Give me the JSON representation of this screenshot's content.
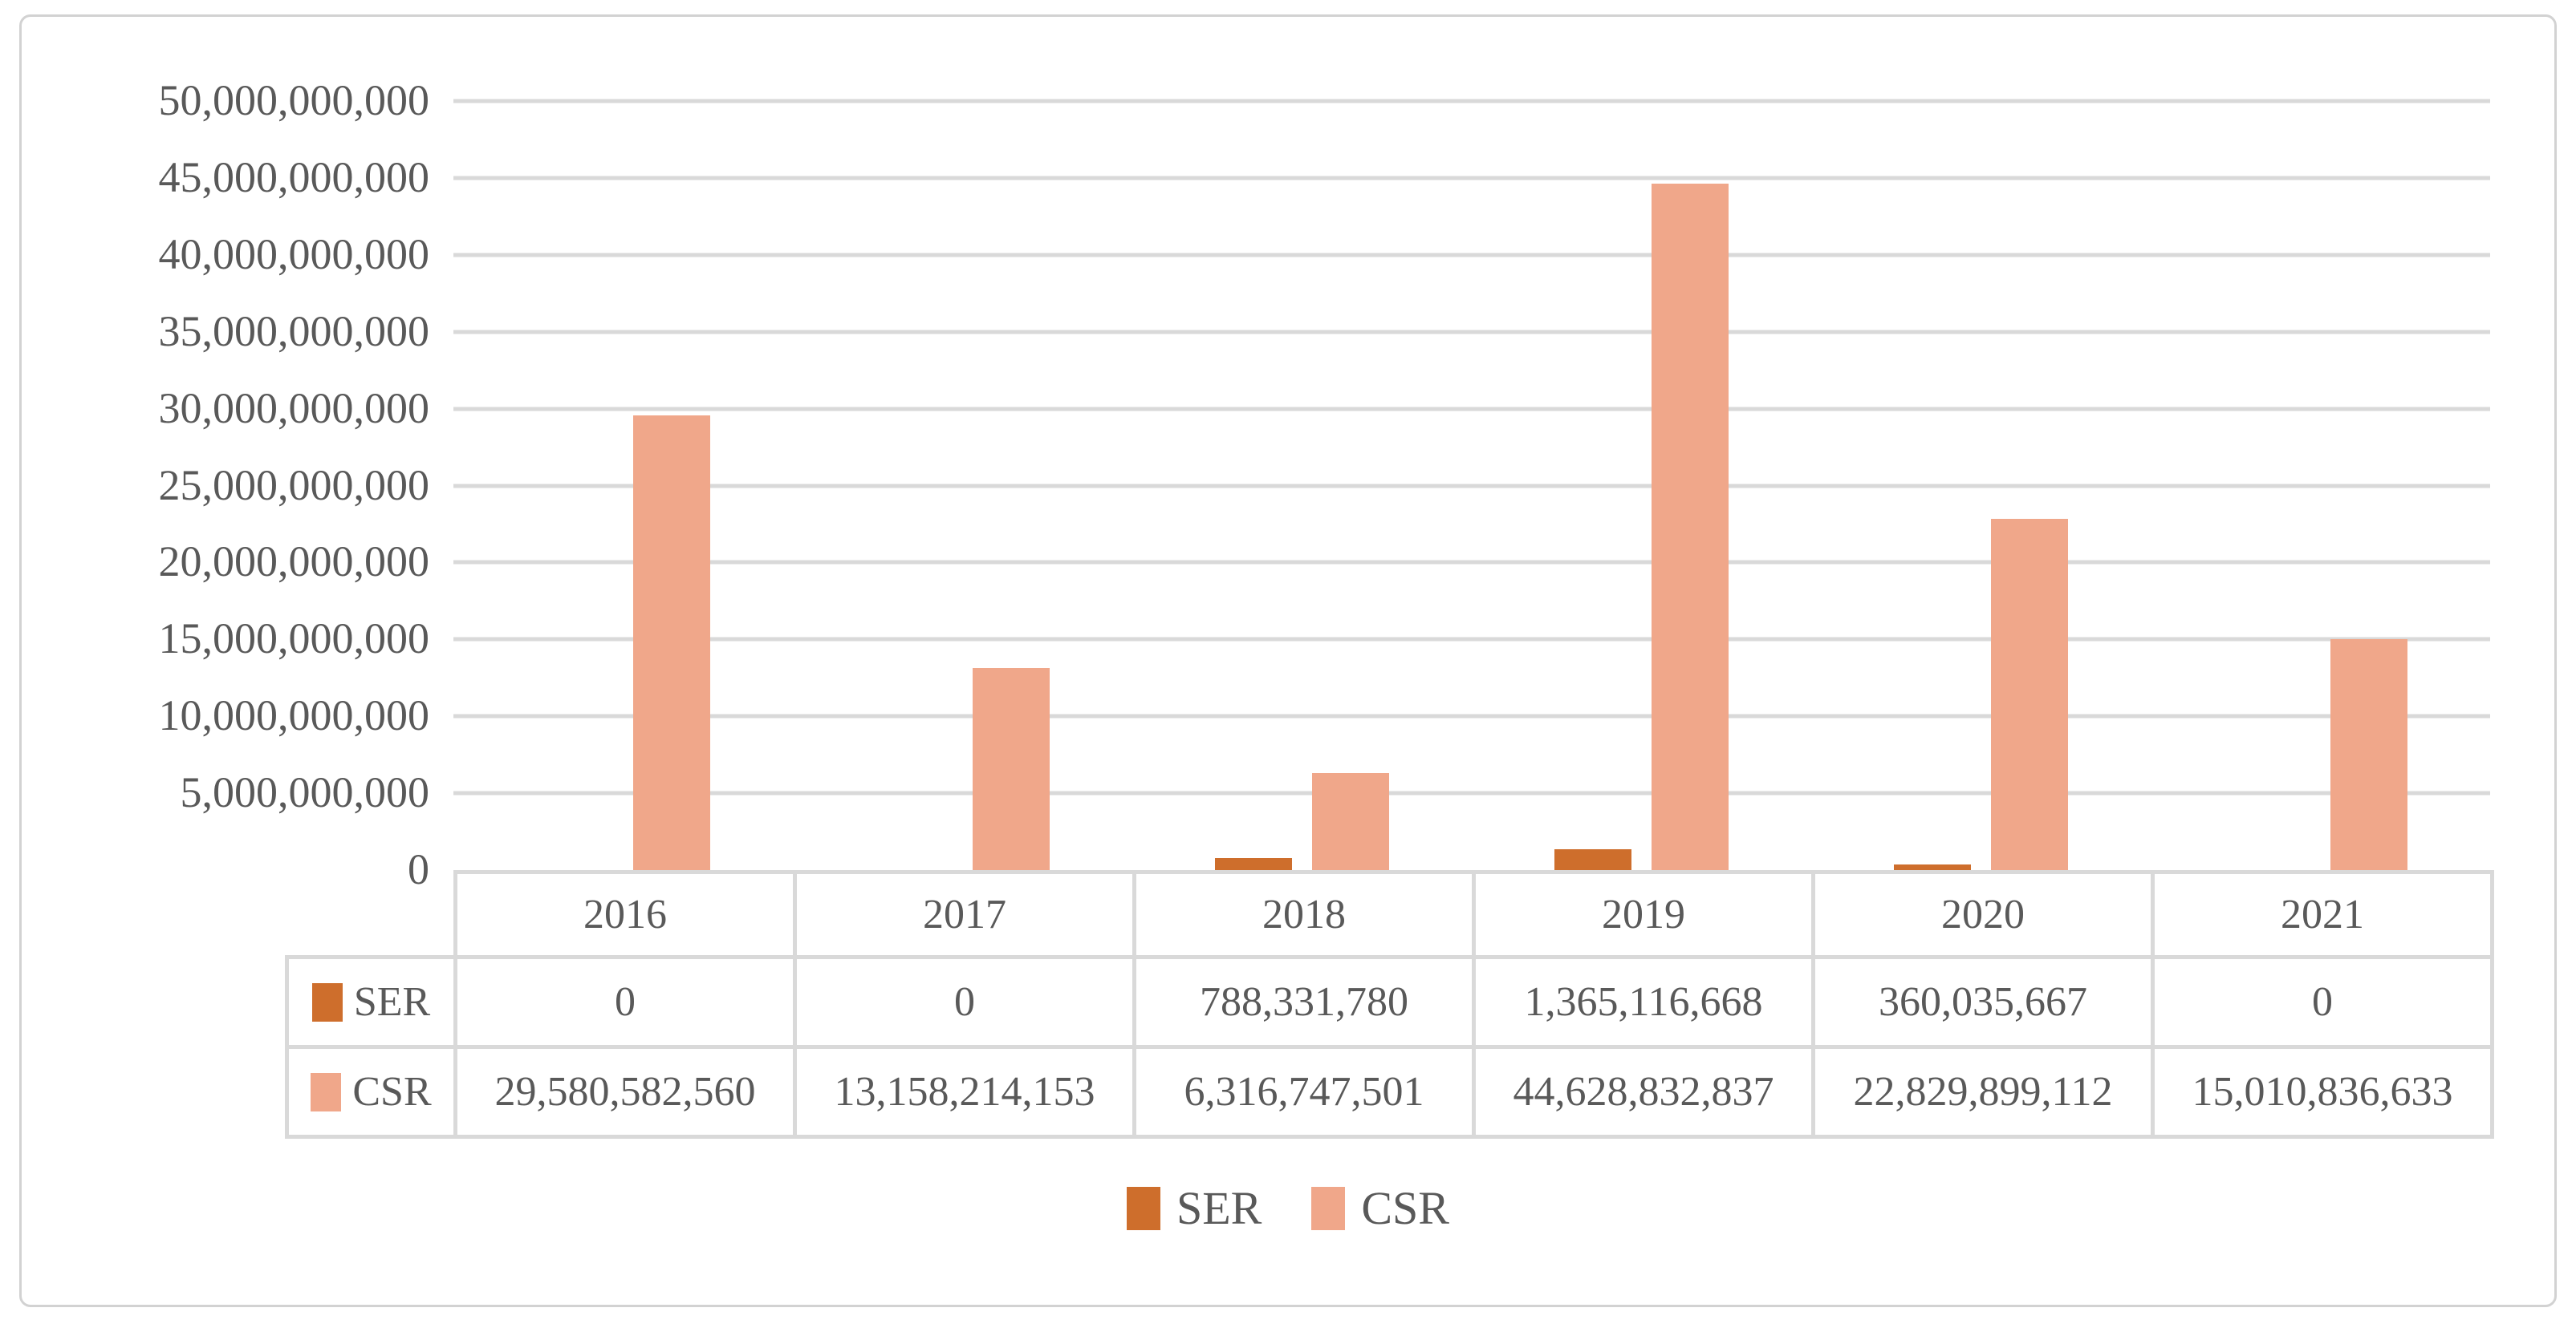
{
  "colors": {
    "ser": "#ce6e2c",
    "csr": "#f0a78a",
    "grid": "#d9d9d9",
    "text": "#595959",
    "card_border": "#d2d2d2"
  },
  "chart_data": {
    "type": "bar",
    "title": "",
    "xlabel": "",
    "ylabel": "",
    "categories": [
      "2016",
      "2017",
      "2018",
      "2019",
      "2020",
      "2021"
    ],
    "series": [
      {
        "name": "SER",
        "color": "#ce6e2c",
        "values": [
          0,
          0,
          788331780,
          1365116668,
          360035667,
          0
        ],
        "display": [
          "0",
          "0",
          "788,331,780",
          "1,365,116,668",
          "360,035,667",
          "0"
        ]
      },
      {
        "name": "CSR",
        "color": "#f0a78a",
        "values": [
          29580582560,
          13158214153,
          6316747501,
          44628832837,
          22829899112,
          15010836633
        ],
        "display": [
          "29,580,582,560",
          "13,158,214,153",
          "6,316,747,501",
          "44,628,832,837",
          "22,829,899,112",
          "15,010,836,633"
        ]
      }
    ],
    "ylim": [
      0,
      50000000000
    ],
    "ytick_step": 5000000000,
    "ytick_labels": [
      "50,000,000,000",
      "45,000,000,000",
      "40,000,000,000",
      "35,000,000,000",
      "30,000,000,000",
      "25,000,000,000",
      "20,000,000,000",
      "15,000,000,000",
      "10,000,000,000",
      "5,000,000,000",
      "0"
    ],
    "grid": "horizontal",
    "legend_position": "bottom",
    "data_table_shown": true
  },
  "legend": {
    "items": [
      {
        "label": "SER",
        "color": "#ce6e2c"
      },
      {
        "label": "CSR",
        "color": "#f0a78a"
      }
    ]
  }
}
